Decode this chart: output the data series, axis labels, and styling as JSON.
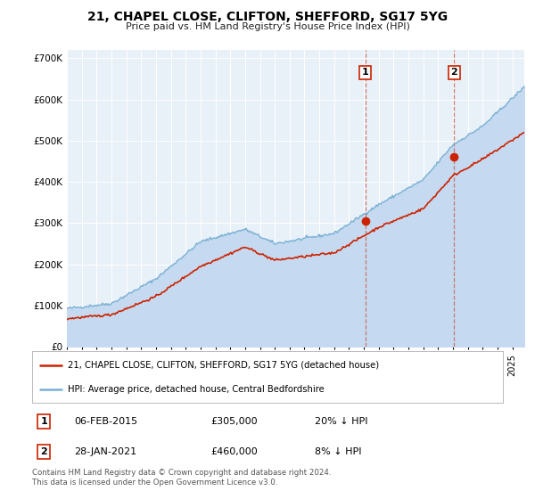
{
  "title": "21, CHAPEL CLOSE, CLIFTON, SHEFFORD, SG17 5YG",
  "subtitle": "Price paid vs. HM Land Registry's House Price Index (HPI)",
  "background_color": "#ffffff",
  "plot_background": "#e8f0f8",
  "grid_color": "#ffffff",
  "hpi_color": "#7ab0d4",
  "hpi_fill_color": "#c5daf0",
  "price_color": "#cc2200",
  "dashed_color": "#cc6655",
  "legend_line1": "21, CHAPEL CLOSE, CLIFTON, SHEFFORD, SG17 5YG (detached house)",
  "legend_line2": "HPI: Average price, detached house, Central Bedfordshire",
  "table_row1": [
    "1",
    "06-FEB-2015",
    "£305,000",
    "20% ↓ HPI"
  ],
  "table_row2": [
    "2",
    "28-JAN-2021",
    "£460,000",
    "8% ↓ HPI"
  ],
  "footer": "Contains HM Land Registry data © Crown copyright and database right 2024.\nThis data is licensed under the Open Government Licence v3.0.",
  "ylim": [
    0,
    720000
  ],
  "xlim_start": 1995.0,
  "xlim_end": 2025.8,
  "sale1_x": 2015.1,
  "sale1_y": 305000,
  "sale2_x": 2021.07,
  "sale2_y": 460000,
  "hpi_breakpoints": [
    1995,
    1998,
    2001,
    2004,
    2007,
    2009,
    2013,
    2016,
    2019,
    2021,
    2023,
    2025.8
  ],
  "hpi_values": [
    93000,
    105000,
    165000,
    255000,
    285000,
    250000,
    275000,
    345000,
    405000,
    490000,
    535000,
    630000
  ],
  "prop_breakpoints": [
    1995,
    1998,
    2001,
    2004,
    2007,
    2009,
    2013,
    2016,
    2019,
    2021,
    2023,
    2025.8
  ],
  "prop_values": [
    68000,
    78000,
    122000,
    195000,
    242000,
    210000,
    228000,
    290000,
    335000,
    415000,
    455000,
    520000
  ]
}
